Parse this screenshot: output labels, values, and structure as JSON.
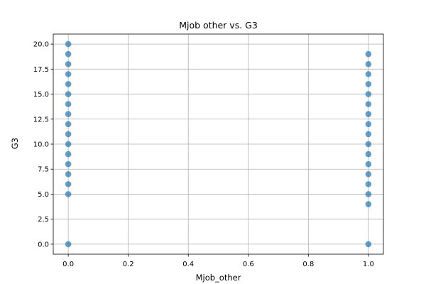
{
  "chart_data": {
    "type": "scatter",
    "title": "Mjob other vs. G3",
    "xlabel": "Mjob_other",
    "ylabel": "G3",
    "xlim": [
      -0.05,
      1.05
    ],
    "ylim": [
      -1.0,
      21.0
    ],
    "xticks": [
      0.0,
      0.2,
      0.4,
      0.6,
      0.8,
      1.0
    ],
    "yticks": [
      0.0,
      2.5,
      5.0,
      7.5,
      10.0,
      12.5,
      15.0,
      17.5,
      20.0
    ],
    "xtick_labels": [
      "0.0",
      "0.2",
      "0.4",
      "0.6",
      "0.8",
      "1.0"
    ],
    "ytick_labels": [
      "0.0",
      "2.5",
      "5.0",
      "7.5",
      "10.0",
      "12.5",
      "15.0",
      "17.5",
      "20.0"
    ],
    "grid": true,
    "series": [
      {
        "color": "#1f77b4",
        "points": [
          {
            "x": 0,
            "y": 0
          },
          {
            "x": 0,
            "y": 5
          },
          {
            "x": 0,
            "y": 6
          },
          {
            "x": 0,
            "y": 7
          },
          {
            "x": 0,
            "y": 8
          },
          {
            "x": 0,
            "y": 9
          },
          {
            "x": 0,
            "y": 10
          },
          {
            "x": 0,
            "y": 11
          },
          {
            "x": 0,
            "y": 12
          },
          {
            "x": 0,
            "y": 13
          },
          {
            "x": 0,
            "y": 14
          },
          {
            "x": 0,
            "y": 15
          },
          {
            "x": 0,
            "y": 16
          },
          {
            "x": 0,
            "y": 17
          },
          {
            "x": 0,
            "y": 18
          },
          {
            "x": 0,
            "y": 19
          },
          {
            "x": 0,
            "y": 20
          },
          {
            "x": 1,
            "y": 0
          },
          {
            "x": 1,
            "y": 4
          },
          {
            "x": 1,
            "y": 5
          },
          {
            "x": 1,
            "y": 6
          },
          {
            "x": 1,
            "y": 7
          },
          {
            "x": 1,
            "y": 8
          },
          {
            "x": 1,
            "y": 9
          },
          {
            "x": 1,
            "y": 10
          },
          {
            "x": 1,
            "y": 11
          },
          {
            "x": 1,
            "y": 12
          },
          {
            "x": 1,
            "y": 13
          },
          {
            "x": 1,
            "y": 14
          },
          {
            "x": 1,
            "y": 15
          },
          {
            "x": 1,
            "y": 16
          },
          {
            "x": 1,
            "y": 17
          },
          {
            "x": 1,
            "y": 18
          },
          {
            "x": 1,
            "y": 19
          }
        ]
      }
    ]
  }
}
